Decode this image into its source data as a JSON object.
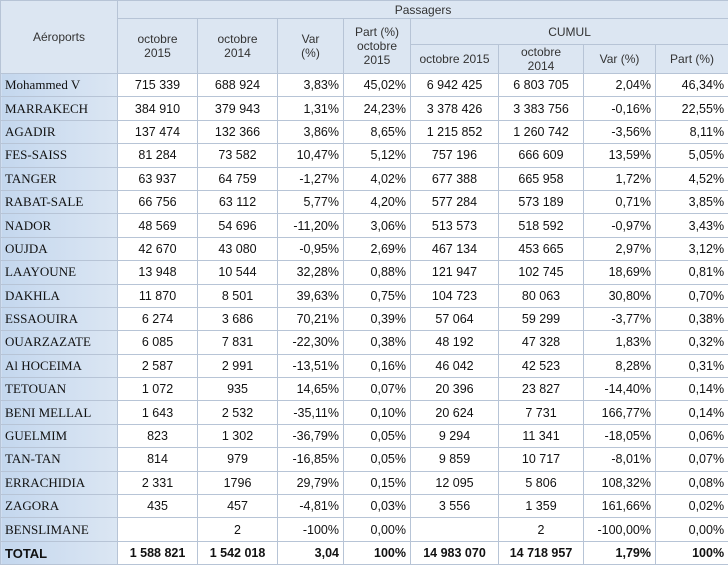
{
  "table": {
    "header": {
      "airports": "Aéroports",
      "passengers": "Passagers",
      "cumul": "CUMUL",
      "columns": [
        "octobre\n2015",
        "octobre\n2014",
        "Var\n(%)",
        "Part (%)\noctobre\n2015"
      ],
      "cumul_columns": [
        "octobre 2015",
        "octobre\n2014",
        "Var (%)",
        "Part (%)"
      ]
    },
    "rows": [
      [
        "Mohammed V",
        "715 339",
        "688 924",
        "3,83%",
        "45,02%",
        "6 942 425",
        "6 803 705",
        "2,04%",
        "46,34%"
      ],
      [
        "MARRAKECH",
        "384 910",
        "379 943",
        "1,31%",
        "24,23%",
        "3 378 426",
        "3 383 756",
        "-0,16%",
        "22,55%"
      ],
      [
        "AGADIR",
        "137 474",
        "132 366",
        "3,86%",
        "8,65%",
        "1 215 852",
        "1 260 742",
        "-3,56%",
        "8,11%"
      ],
      [
        "FES-SAISS",
        "81 284",
        "73 582",
        "10,47%",
        "5,12%",
        "757 196",
        "666 609",
        "13,59%",
        "5,05%"
      ],
      [
        "TANGER",
        "63 937",
        "64 759",
        "-1,27%",
        "4,02%",
        "677 388",
        "665 958",
        "1,72%",
        "4,52%"
      ],
      [
        "RABAT-SALE",
        "66 756",
        "63 112",
        "5,77%",
        "4,20%",
        "577 284",
        "573 189",
        "0,71%",
        "3,85%"
      ],
      [
        "NADOR",
        "48 569",
        "54 696",
        "-11,20%",
        "3,06%",
        "513 573",
        "518 592",
        "-0,97%",
        "3,43%"
      ],
      [
        "OUJDA",
        "42 670",
        "43 080",
        "-0,95%",
        "2,69%",
        "467 134",
        "453 665",
        "2,97%",
        "3,12%"
      ],
      [
        "LAAYOUNE",
        "13 948",
        "10 544",
        "32,28%",
        "0,88%",
        "121 947",
        "102 745",
        "18,69%",
        "0,81%"
      ],
      [
        "DAKHLA",
        "11 870",
        "8 501",
        "39,63%",
        "0,75%",
        "104 723",
        "80 063",
        "30,80%",
        "0,70%"
      ],
      [
        "ESSAOUIRA",
        "6 274",
        "3 686",
        "70,21%",
        "0,39%",
        "57 064",
        "59 299",
        "-3,77%",
        "0,38%"
      ],
      [
        "OUARZAZATE",
        "6 085",
        "7 831",
        "-22,30%",
        "0,38%",
        "48 192",
        "47 328",
        "1,83%",
        "0,32%"
      ],
      [
        "Al HOCEIMA",
        "2 587",
        "2 991",
        "-13,51%",
        "0,16%",
        "46 042",
        "42 523",
        "8,28%",
        "0,31%"
      ],
      [
        "TETOUAN",
        "1 072",
        "935",
        "14,65%",
        "0,07%",
        "20 396",
        "23 827",
        "-14,40%",
        "0,14%"
      ],
      [
        "BENI MELLAL",
        "1 643",
        "2 532",
        "-35,11%",
        "0,10%",
        "20 624",
        "7 731",
        "166,77%",
        "0,14%"
      ],
      [
        "GUELMIM",
        "823",
        "1 302",
        "-36,79%",
        "0,05%",
        "9 294",
        "11 341",
        "-18,05%",
        "0,06%"
      ],
      [
        "TAN-TAN",
        "814",
        "979",
        "-16,85%",
        "0,05%",
        "9 859",
        "10 717",
        "-8,01%",
        "0,07%"
      ],
      [
        "ERRACHIDIA",
        "2 331",
        "1796",
        "29,79%",
        "0,15%",
        "12 095",
        "5 806",
        "108,32%",
        "0,08%"
      ],
      [
        "ZAGORA",
        "435",
        "457",
        "-4,81%",
        "0,03%",
        "3 556",
        "1 359",
        "161,66%",
        "0,02%"
      ],
      [
        "BENSLIMANE",
        null,
        "2",
        "-100%",
        "0,00%",
        null,
        "2",
        "-100,00%",
        "0,00%"
      ]
    ],
    "total": [
      "TOTAL",
      "1 588 821",
      "1 542 018",
      "3,04",
      "100%",
      "14 983 070",
      "14 718 957",
      "1,79%",
      "100%"
    ]
  }
}
